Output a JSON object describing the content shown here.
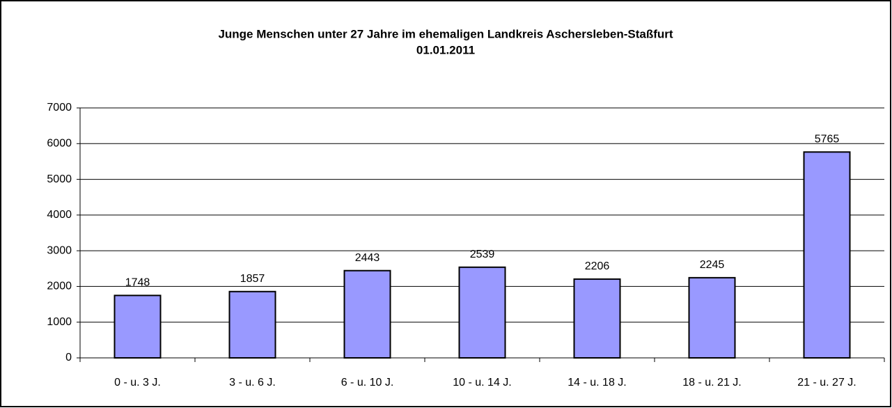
{
  "chart_data": {
    "type": "bar",
    "title": "Junge Menschen unter 27 Jahre im ehemaligen Landkreis Aschersleben-Staßfurt",
    "subtitle": "01.01.2011",
    "categories": [
      "0 - u. 3 J.",
      "3 - u. 6 J.",
      "6 - u. 10 J.",
      "10 - u. 14 J.",
      "14 - u. 18 J.",
      "18 - u. 21 J.",
      "21 - u. 27 J."
    ],
    "values": [
      1748,
      1857,
      2443,
      2539,
      2206,
      2245,
      5765
    ],
    "color": "#9999ff",
    "ylim": [
      0,
      7000
    ],
    "yticks": [
      0,
      1000,
      2000,
      3000,
      4000,
      5000,
      6000,
      7000
    ],
    "grid": true
  }
}
